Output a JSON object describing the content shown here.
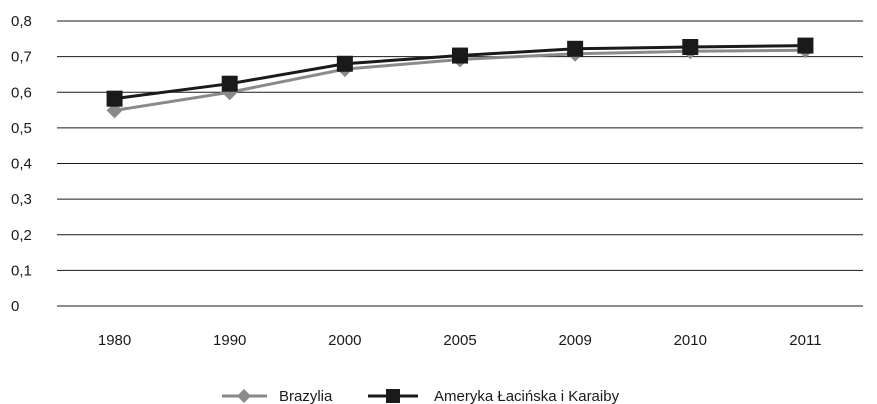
{
  "chart_data": {
    "type": "line",
    "categories": [
      "1980",
      "1990",
      "2000",
      "2005",
      "2009",
      "2010",
      "2011"
    ],
    "ylim": [
      0,
      0.8
    ],
    "yticks": [
      "0",
      "0,1",
      "0,2",
      "0,3",
      "0,4",
      "0,5",
      "0,6",
      "0,7",
      "0,8"
    ],
    "grid": true,
    "legend_position": "bottom",
    "series": [
      {
        "name": "Brazylia",
        "marker": "diamond",
        "color": "#8a8a8a",
        "values": [
          0.549,
          0.6,
          0.665,
          0.692,
          0.708,
          0.715,
          0.718
        ]
      },
      {
        "name": "Ameryka Łacińska i Karaiby",
        "marker": "square",
        "color": "#1a1a1a",
        "values": [
          0.582,
          0.624,
          0.68,
          0.703,
          0.722,
          0.727,
          0.731
        ]
      }
    ]
  }
}
